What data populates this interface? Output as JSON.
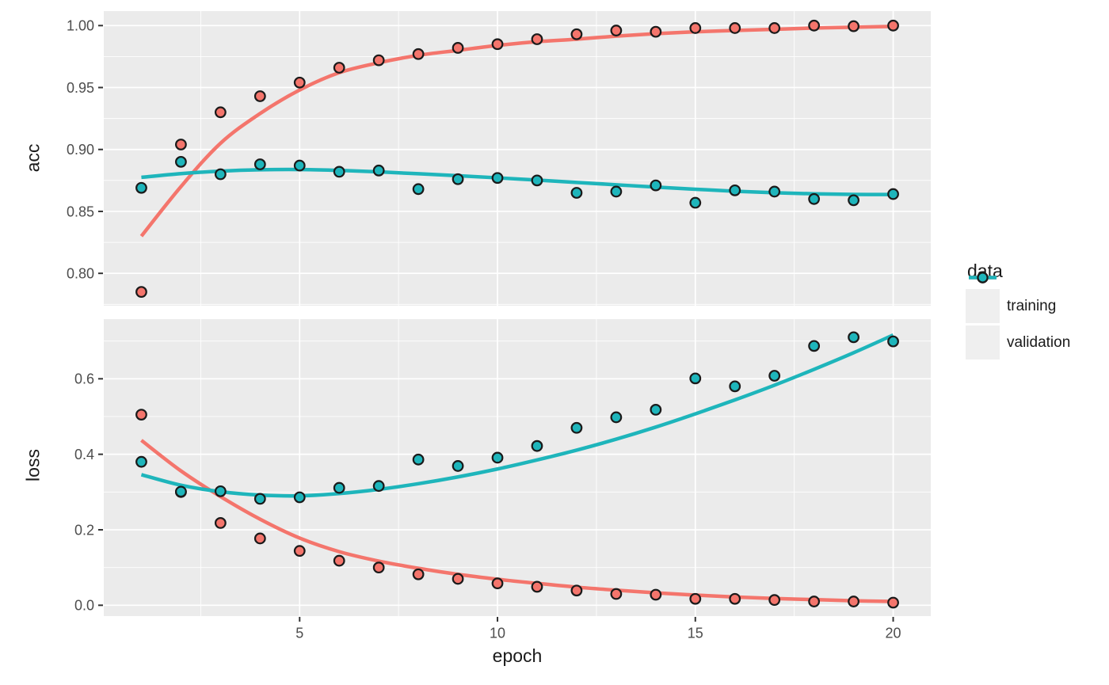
{
  "figure": {
    "background": "#FFFFFF",
    "panel_background": "#EBEBEB",
    "grid_color": "#FFFFFF",
    "axis_text_color": "#4D4D4D",
    "axis_title_color": "#1A1A1A",
    "tick_mark_color": "#333333",
    "point_outline_color": "#1A1A1A"
  },
  "legend": {
    "title": "data",
    "entries": [
      {
        "label": "training",
        "color": "#F4756C"
      },
      {
        "label": "validation",
        "color": "#1EB5BB"
      }
    ]
  },
  "x_axis": {
    "label": "epoch",
    "lim": [
      0.05,
      20.95
    ],
    "ticks": [
      5,
      10,
      15,
      20
    ],
    "tick_labels": [
      "5",
      "10",
      "15",
      "20"
    ],
    "minor_ticks": [
      2.5,
      7.5,
      12.5,
      17.5
    ]
  },
  "epochs": [
    1,
    2,
    3,
    4,
    5,
    6,
    7,
    8,
    9,
    10,
    11,
    12,
    13,
    14,
    15,
    16,
    17,
    18,
    19,
    20
  ],
  "chart_data": [
    {
      "type": "scatter",
      "facet": "acc",
      "ylabel": "acc",
      "ylim": [
        0.7739,
        1.0117
      ],
      "yticks": [
        0.8,
        0.85,
        0.9,
        0.95,
        1.0
      ],
      "ytick_labels": [
        "0.80",
        "0.85",
        "0.90",
        "0.95",
        "1.00"
      ],
      "yticks_minor": [
        0.775,
        0.825,
        0.875,
        0.925,
        0.975
      ],
      "grid": true,
      "legend_position": "right",
      "series": [
        {
          "name": "training",
          "color": "#F4756C",
          "values": [
            0.785,
            0.904,
            0.93,
            0.943,
            0.954,
            0.966,
            0.972,
            0.977,
            0.982,
            0.985,
            0.989,
            0.993,
            0.996,
            0.995,
            0.998,
            0.998,
            0.998,
            1.0,
            0.9995,
            1.0
          ],
          "smooth": [
            0.83,
            0.87,
            0.905,
            0.929,
            0.948,
            0.962,
            0.97,
            0.976,
            0.98,
            0.984,
            0.987,
            0.989,
            0.9915,
            0.9935,
            0.995,
            0.996,
            0.997,
            0.998,
            0.9987,
            0.9993
          ]
        },
        {
          "name": "validation",
          "color": "#1EB5BB",
          "values": [
            0.869,
            0.89,
            0.88,
            0.888,
            0.887,
            0.882,
            0.883,
            0.868,
            0.876,
            0.877,
            0.875,
            0.865,
            0.866,
            0.871,
            0.857,
            0.867,
            0.866,
            0.86,
            0.859,
            0.864
          ],
          "smooth": [
            0.8775,
            0.8805,
            0.8825,
            0.8836,
            0.8838,
            0.8831,
            0.8819,
            0.8804,
            0.8788,
            0.8771,
            0.8753,
            0.8734,
            0.8715,
            0.8696,
            0.8679,
            0.8663,
            0.8651,
            0.8642,
            0.8637,
            0.8636
          ]
        }
      ]
    },
    {
      "type": "scatter",
      "facet": "loss",
      "ylabel": "loss",
      "ylim": [
        -0.0287,
        0.758
      ],
      "yticks": [
        0.0,
        0.2,
        0.4,
        0.6
      ],
      "ytick_labels": [
        "0.0",
        "0.2",
        "0.4",
        "0.6"
      ],
      "yticks_minor": [
        0.1,
        0.3,
        0.5,
        0.7
      ],
      "grid": true,
      "legend_position": "right",
      "series": [
        {
          "name": "training",
          "color": "#F4756C",
          "values": [
            0.505,
            0.3,
            0.218,
            0.177,
            0.144,
            0.118,
            0.1,
            0.082,
            0.07,
            0.058,
            0.049,
            0.039,
            0.03,
            0.028,
            0.017,
            0.017,
            0.014,
            0.01,
            0.01,
            0.007
          ],
          "smooth": [
            0.437,
            0.356,
            0.288,
            0.228,
            0.178,
            0.142,
            0.117,
            0.098,
            0.082,
            0.069,
            0.058,
            0.048,
            0.04,
            0.033,
            0.027,
            0.022,
            0.018,
            0.015,
            0.012,
            0.01
          ]
        },
        {
          "name": "validation",
          "color": "#1EB5BB",
          "values": [
            0.38,
            0.301,
            0.302,
            0.282,
            0.286,
            0.311,
            0.316,
            0.386,
            0.369,
            0.391,
            0.422,
            0.47,
            0.498,
            0.518,
            0.601,
            0.58,
            0.608,
            0.687,
            0.71,
            0.699
          ],
          "smooth": [
            0.346,
            0.318,
            0.301,
            0.292,
            0.29,
            0.296,
            0.307,
            0.322,
            0.34,
            0.361,
            0.385,
            0.411,
            0.44,
            0.472,
            0.507,
            0.544,
            0.583,
            0.625,
            0.669,
            0.716
          ]
        }
      ]
    }
  ]
}
